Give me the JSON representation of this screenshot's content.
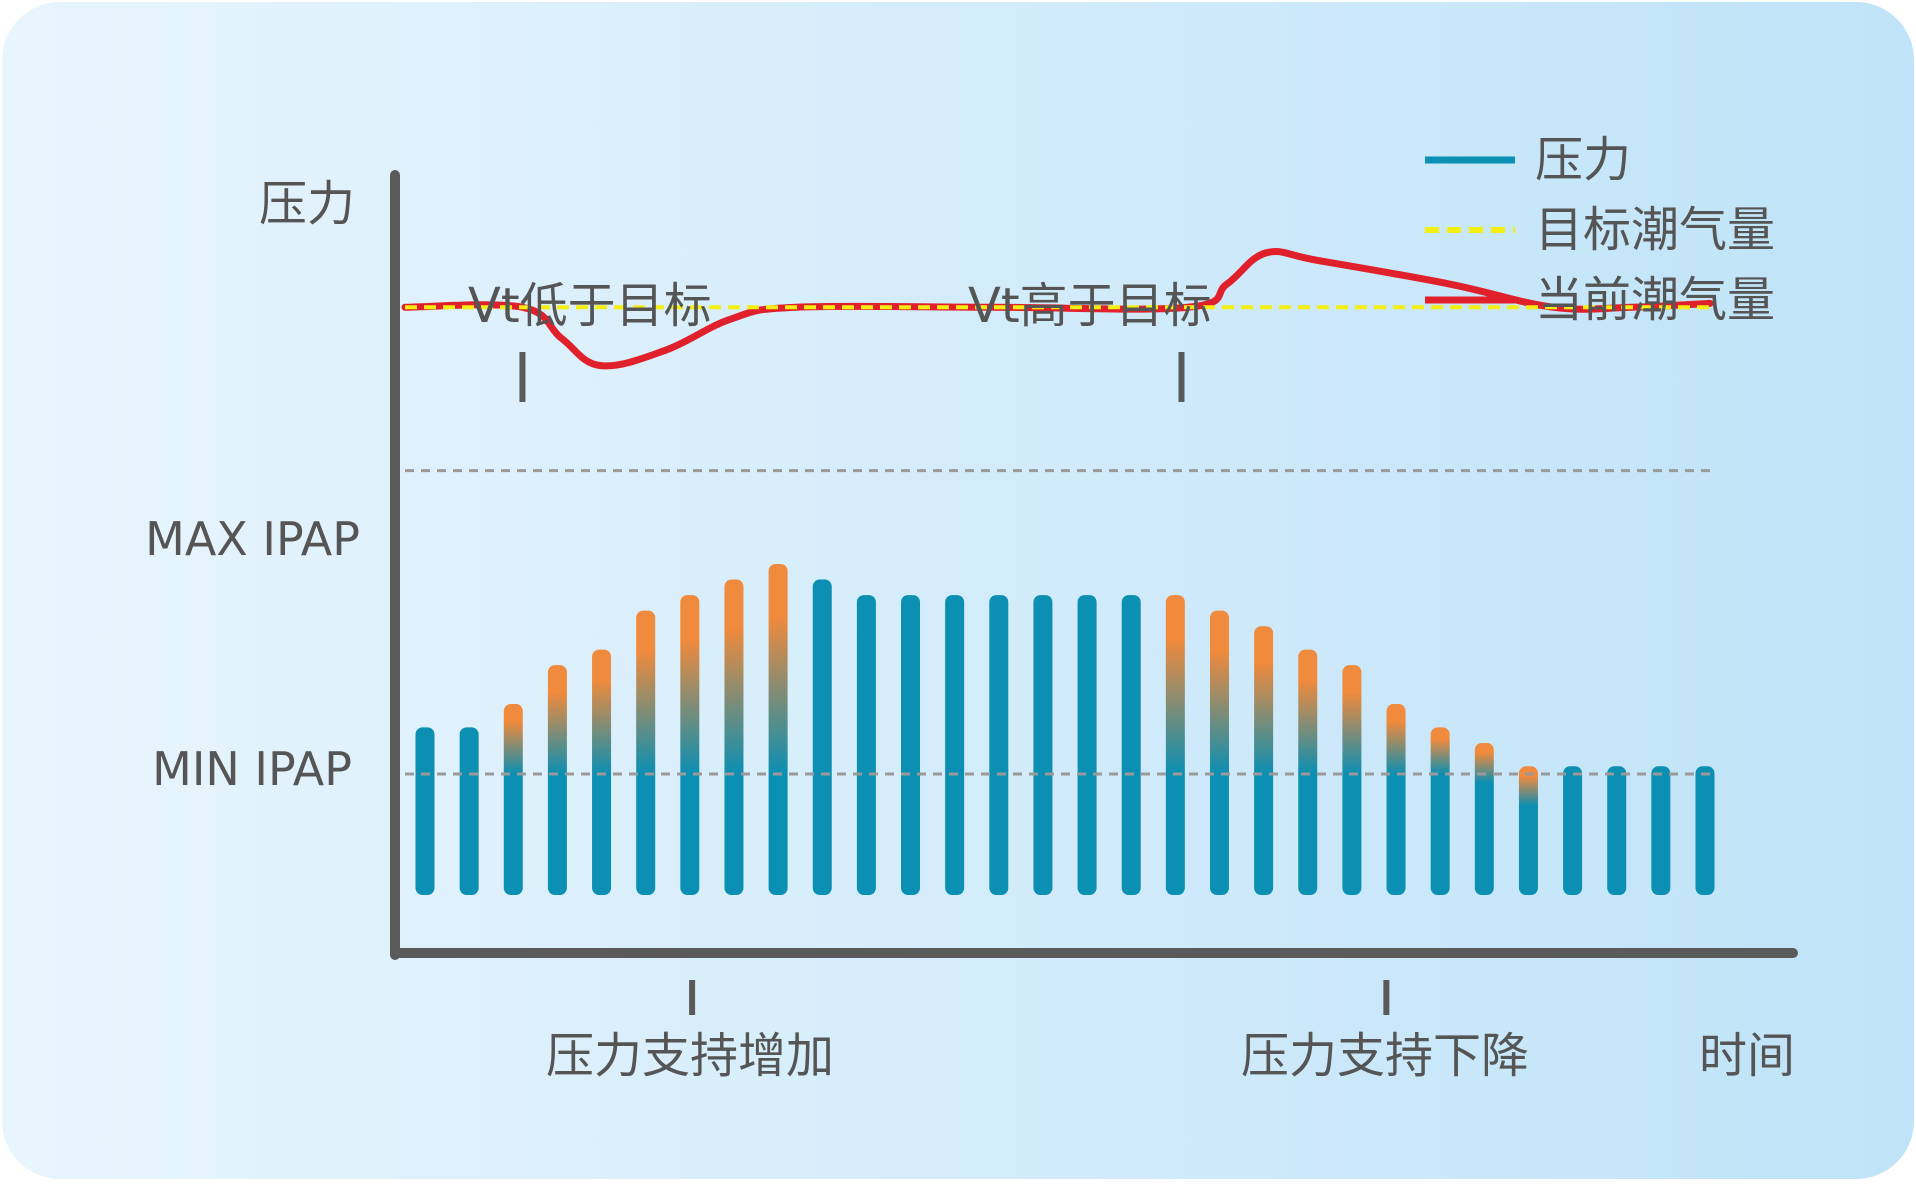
{
  "labels": {
    "y_axis": "压力",
    "x_axis": "时间",
    "max_ipap": "MAX IPAP",
    "min_ipap": "MIN IPAP",
    "vt_low": "Vt低于目标",
    "vt_high": "Vt高于目标",
    "support_increase": "压力支持增加",
    "support_decrease": "压力支持下降"
  },
  "legend": [
    {
      "label": "压力",
      "color": "#0b8fb2",
      "style": "solid"
    },
    {
      "label": "目标潮气量",
      "color": "#f5ee12",
      "style": "dashed"
    },
    {
      "label": "当前潮气量",
      "color": "#e0202a",
      "style": "solid"
    }
  ],
  "colors": {
    "pressure": "#0b8fb2",
    "pressure_adjust": "#f08a3c",
    "target_vt": "#f5ee12",
    "current_vt": "#e0202a",
    "axis": "#5a5a5a",
    "reference_line": "#9a9a9a",
    "text": "#555555",
    "background_left": "#e8f5fd",
    "background_right": "#bfe3f8"
  },
  "chart_data": {
    "type": "bar",
    "ylim": [
      0,
      10
    ],
    "max_ipap": 6.2,
    "min_ipap": 2.3,
    "pressure_levels": [
      2.9,
      2.9,
      3.2,
      3.7,
      3.9,
      4.4,
      4.6,
      4.8,
      5.0,
      4.8,
      4.6,
      4.6,
      4.6,
      4.6,
      4.6,
      4.6,
      4.6,
      4.6,
      4.4,
      4.2,
      3.9,
      3.7,
      3.2,
      2.9,
      2.7,
      2.4,
      2.4,
      2.4,
      2.4,
      2.4
    ],
    "adjusting": [
      false,
      false,
      true,
      true,
      true,
      true,
      true,
      true,
      true,
      false,
      false,
      false,
      false,
      false,
      false,
      false,
      false,
      true,
      true,
      true,
      true,
      true,
      true,
      true,
      true,
      true,
      false,
      false,
      false,
      false
    ],
    "target_vt": 8.3,
    "current_vt": [
      [
        0,
        8.3
      ],
      [
        0.09,
        8.3
      ],
      [
        0.12,
        7.9
      ],
      [
        0.15,
        7.55
      ],
      [
        0.2,
        7.75
      ],
      [
        0.25,
        8.15
      ],
      [
        0.3,
        8.3
      ],
      [
        0.45,
        8.3
      ],
      [
        0.6,
        8.3
      ],
      [
        0.63,
        8.6
      ],
      [
        0.66,
        9.0
      ],
      [
        0.7,
        8.9
      ],
      [
        0.8,
        8.6
      ],
      [
        0.88,
        8.3
      ],
      [
        0.94,
        8.3
      ],
      [
        1.0,
        8.35
      ]
    ],
    "vt_low_at": 0.09,
    "vt_high_at": 0.595,
    "support_increase_at": 0.22,
    "support_decrease_at": 0.752
  }
}
